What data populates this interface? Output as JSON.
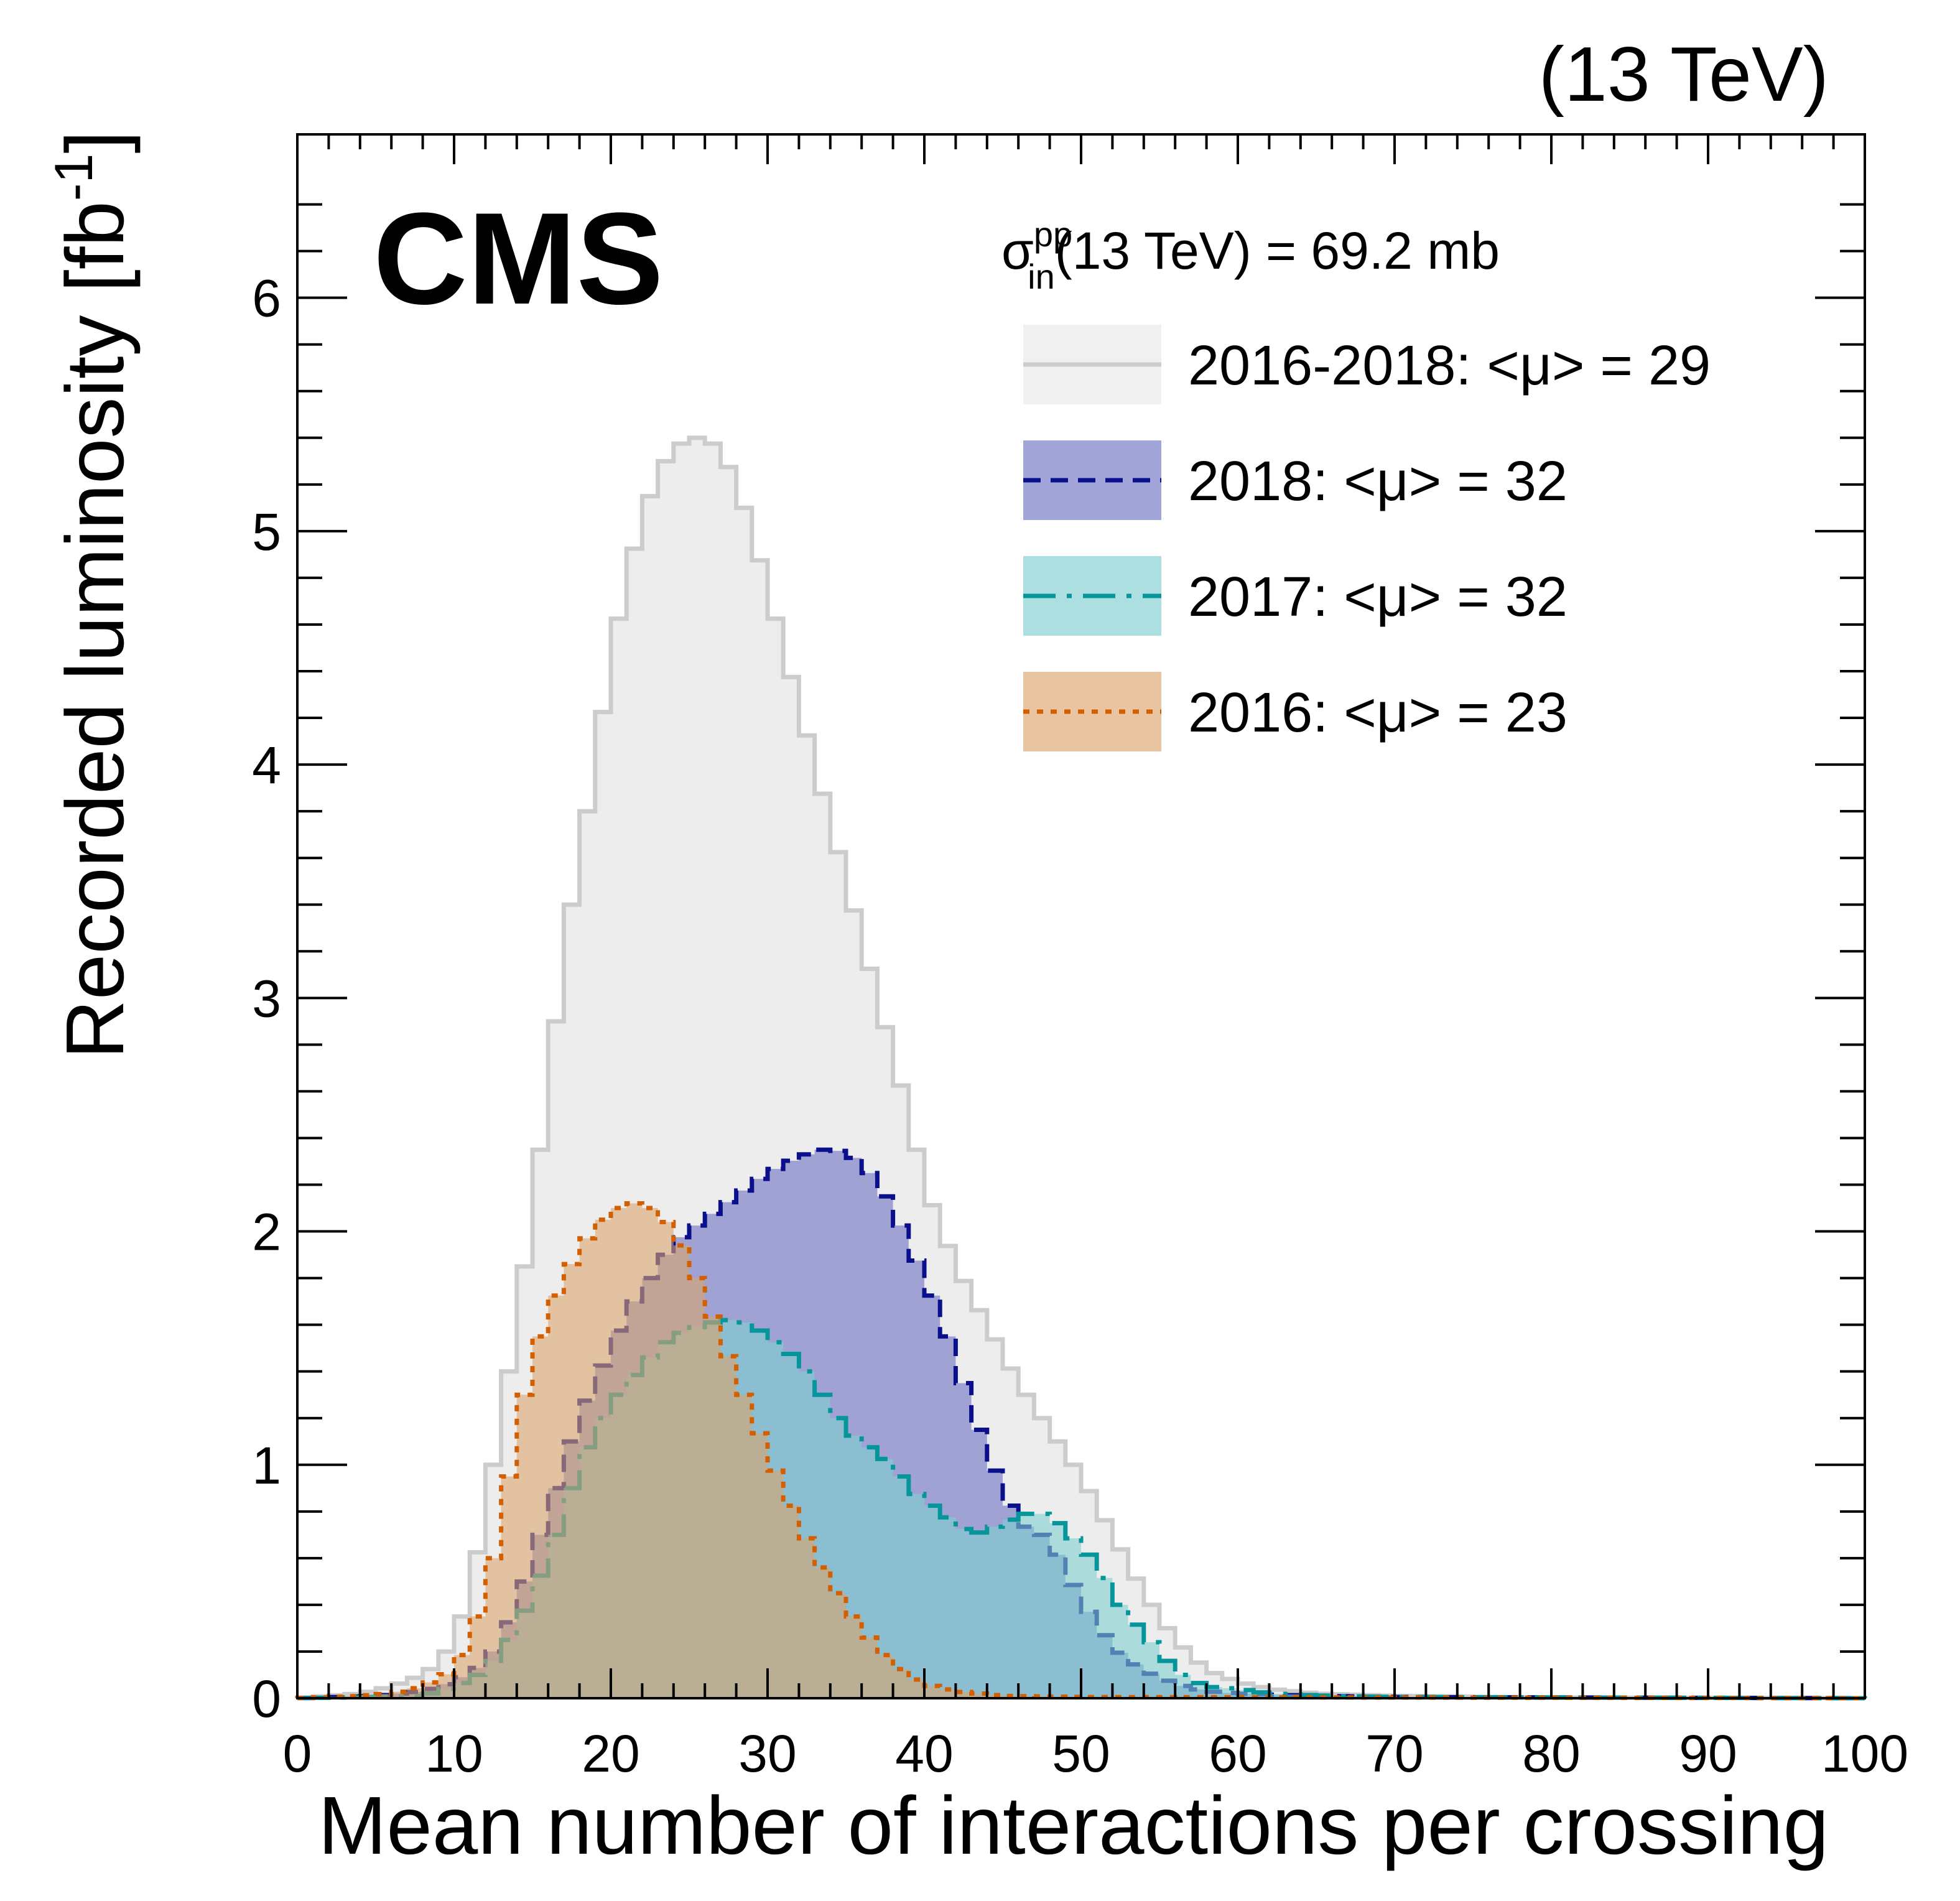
{
  "energy_label": "(13 TeV)",
  "cms_label": "CMS",
  "xsec": {
    "sigma": "σ",
    "sup": "pp",
    "sub": "in",
    "rest": "(13 TeV) = 69.2 mb"
  },
  "legend": [
    {
      "label": "2016-2018: <μ> =  29"
    },
    {
      "label": "2018: <μ> =  32"
    },
    {
      "label": "2017: <μ> =  32"
    },
    {
      "label": "2016: <μ> =  23"
    }
  ],
  "chart_data": {
    "type": "area",
    "xlabel": "Mean number of interactions per crossing",
    "ylabel": "Recorded luminosity [fb",
    "ylabel_sup": "-1",
    "ylabel_close": "]",
    "xlim": [
      0,
      100
    ],
    "ylim": [
      0,
      6.7
    ],
    "x_ticks": [
      0,
      10,
      20,
      30,
      40,
      50,
      60,
      70,
      80,
      90,
      100
    ],
    "y_ticks": [
      0,
      1,
      2,
      3,
      4,
      5,
      6
    ],
    "legend_position": "top-right",
    "bin_width": 1,
    "series": [
      {
        "name": "2016-2018",
        "colors": {
          "fill": "#ededed",
          "line": "#cccccc"
        },
        "points": [
          [
            0,
            0
          ],
          [
            4,
            0.02
          ],
          [
            6,
            0.05
          ],
          [
            8,
            0.1
          ],
          [
            9,
            0.15
          ],
          [
            10,
            0.25
          ],
          [
            11,
            0.45
          ],
          [
            12,
            0.8
          ],
          [
            13,
            1.2
          ],
          [
            14,
            1.6
          ],
          [
            15,
            2.1
          ],
          [
            16,
            2.6
          ],
          [
            17,
            3.2
          ],
          [
            18,
            3.6
          ],
          [
            19,
            4.0
          ],
          [
            20,
            4.45
          ],
          [
            21,
            4.8
          ],
          [
            22,
            5.05
          ],
          [
            23,
            5.25
          ],
          [
            24,
            5.35
          ],
          [
            25,
            5.4
          ],
          [
            26,
            5.4
          ],
          [
            27,
            5.35
          ],
          [
            28,
            5.2
          ],
          [
            29,
            5.0
          ],
          [
            30,
            4.75
          ],
          [
            31,
            4.5
          ],
          [
            32,
            4.25
          ],
          [
            33,
            4.0
          ],
          [
            34,
            3.75
          ],
          [
            35,
            3.5
          ],
          [
            36,
            3.25
          ],
          [
            37,
            3.0
          ],
          [
            38,
            2.75
          ],
          [
            39,
            2.5
          ],
          [
            40,
            2.2
          ],
          [
            42,
            1.85
          ],
          [
            44,
            1.6
          ],
          [
            46,
            1.35
          ],
          [
            48,
            1.15
          ],
          [
            50,
            0.95
          ],
          [
            52,
            0.7
          ],
          [
            54,
            0.45
          ],
          [
            56,
            0.25
          ],
          [
            58,
            0.12
          ],
          [
            60,
            0.07
          ],
          [
            62,
            0.04
          ],
          [
            65,
            0.02
          ],
          [
            70,
            0.01
          ],
          [
            80,
            0.003
          ],
          [
            100,
            0
          ]
        ]
      },
      {
        "name": "2018",
        "colors": {
          "fill": "#7b7fc6",
          "line": "#0a0f8c"
        },
        "points": [
          [
            0,
            0
          ],
          [
            5,
            0.01
          ],
          [
            8,
            0.03
          ],
          [
            10,
            0.07
          ],
          [
            12,
            0.15
          ],
          [
            13,
            0.25
          ],
          [
            14,
            0.4
          ],
          [
            15,
            0.6
          ],
          [
            16,
            0.8
          ],
          [
            17,
            1.0
          ],
          [
            18,
            1.2
          ],
          [
            19,
            1.35
          ],
          [
            20,
            1.5
          ],
          [
            21,
            1.65
          ],
          [
            22,
            1.75
          ],
          [
            23,
            1.85
          ],
          [
            24,
            1.95
          ],
          [
            25,
            2.0
          ],
          [
            26,
            2.05
          ],
          [
            28,
            2.15
          ],
          [
            30,
            2.25
          ],
          [
            32,
            2.32
          ],
          [
            34,
            2.36
          ],
          [
            36,
            2.3
          ],
          [
            37,
            2.2
          ],
          [
            38,
            2.1
          ],
          [
            39,
            1.95
          ],
          [
            40,
            1.8
          ],
          [
            41,
            1.65
          ],
          [
            42,
            1.45
          ],
          [
            43,
            1.25
          ],
          [
            44,
            1.05
          ],
          [
            45,
            0.9
          ],
          [
            46,
            0.75
          ],
          [
            47,
            0.72
          ],
          [
            48,
            0.68
          ],
          [
            49,
            0.55
          ],
          [
            50,
            0.42
          ],
          [
            51,
            0.32
          ],
          [
            52,
            0.22
          ],
          [
            54,
            0.12
          ],
          [
            56,
            0.06
          ],
          [
            58,
            0.03
          ],
          [
            60,
            0.02
          ],
          [
            65,
            0.01
          ],
          [
            70,
            0.005
          ],
          [
            100,
            0
          ]
        ]
      },
      {
        "name": "2017",
        "colors": {
          "fill": "#7fd0cf",
          "line": "#05959a"
        },
        "points": [
          [
            0,
            0
          ],
          [
            8,
            0.01
          ],
          [
            10,
            0.05
          ],
          [
            11,
            0.08
          ],
          [
            12,
            0.12
          ],
          [
            13,
            0.2
          ],
          [
            14,
            0.3
          ],
          [
            15,
            0.45
          ],
          [
            16,
            0.6
          ],
          [
            17,
            0.8
          ],
          [
            18,
            1.0
          ],
          [
            19,
            1.15
          ],
          [
            20,
            1.25
          ],
          [
            21,
            1.35
          ],
          [
            22,
            1.42
          ],
          [
            23,
            1.5
          ],
          [
            24,
            1.55
          ],
          [
            25,
            1.58
          ],
          [
            26,
            1.6
          ],
          [
            27,
            1.62
          ],
          [
            28,
            1.62
          ],
          [
            29,
            1.6
          ],
          [
            30,
            1.55
          ],
          [
            31,
            1.5
          ],
          [
            32,
            1.45
          ],
          [
            33,
            1.35
          ],
          [
            34,
            1.25
          ],
          [
            35,
            1.15
          ],
          [
            36,
            1.1
          ],
          [
            37,
            1.05
          ],
          [
            38,
            1.0
          ],
          [
            39,
            0.9
          ],
          [
            40,
            0.85
          ],
          [
            41,
            0.8
          ],
          [
            42,
            0.75
          ],
          [
            43,
            0.7
          ],
          [
            44,
            0.72
          ],
          [
            45,
            0.75
          ],
          [
            46,
            0.78
          ],
          [
            47,
            0.8
          ],
          [
            48,
            0.78
          ],
          [
            49,
            0.72
          ],
          [
            50,
            0.65
          ],
          [
            51,
            0.58
          ],
          [
            52,
            0.45
          ],
          [
            53,
            0.35
          ],
          [
            54,
            0.28
          ],
          [
            55,
            0.2
          ],
          [
            56,
            0.12
          ],
          [
            57,
            0.08
          ],
          [
            58,
            0.05
          ],
          [
            60,
            0.04
          ],
          [
            62,
            0.02
          ],
          [
            66,
            0.01
          ],
          [
            70,
            0.005
          ],
          [
            100,
            0
          ]
        ]
      },
      {
        "name": "2016",
        "colors": {
          "fill": "#dba56e",
          "line": "#d45f00"
        },
        "points": [
          [
            0,
            0
          ],
          [
            4,
            0.01
          ],
          [
            6,
            0.02
          ],
          [
            8,
            0.05
          ],
          [
            10,
            0.12
          ],
          [
            11,
            0.25
          ],
          [
            12,
            0.45
          ],
          [
            13,
            0.75
          ],
          [
            14,
            1.15
          ],
          [
            15,
            1.45
          ],
          [
            16,
            1.65
          ],
          [
            17,
            1.8
          ],
          [
            18,
            1.92
          ],
          [
            19,
            2.02
          ],
          [
            20,
            2.08
          ],
          [
            21,
            2.12
          ],
          [
            22,
            2.12
          ],
          [
            23,
            2.08
          ],
          [
            24,
            2.0
          ],
          [
            25,
            1.88
          ],
          [
            26,
            1.72
          ],
          [
            27,
            1.55
          ],
          [
            28,
            1.38
          ],
          [
            29,
            1.22
          ],
          [
            30,
            1.05
          ],
          [
            31,
            0.9
          ],
          [
            32,
            0.75
          ],
          [
            33,
            0.62
          ],
          [
            34,
            0.5
          ],
          [
            35,
            0.4
          ],
          [
            36,
            0.3
          ],
          [
            37,
            0.22
          ],
          [
            38,
            0.15
          ],
          [
            39,
            0.1
          ],
          [
            40,
            0.06
          ],
          [
            42,
            0.03
          ],
          [
            45,
            0.01
          ],
          [
            50,
            0.005
          ],
          [
            100,
            0
          ]
        ]
      }
    ]
  }
}
